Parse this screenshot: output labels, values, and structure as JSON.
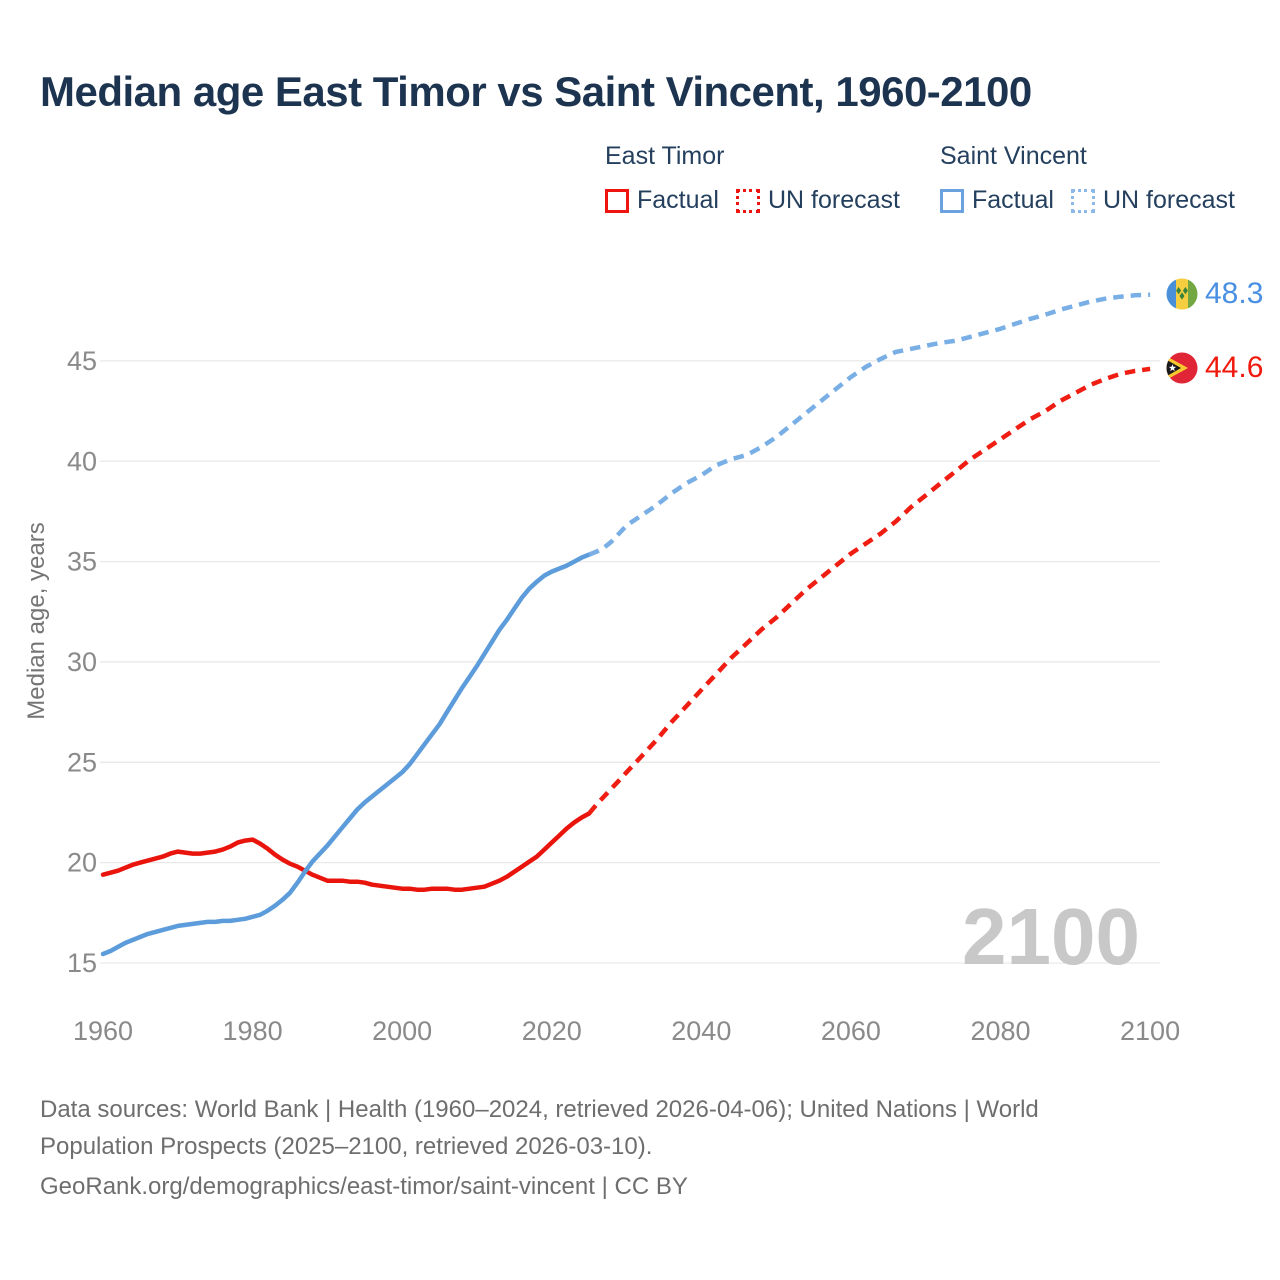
{
  "title": "Median age East Timor vs Saint Vincent, 1960-2100",
  "legend": {
    "groups": [
      {
        "name": "East Timor",
        "items": [
          {
            "label": "Factual",
            "style": "solid",
            "color": "#ee1511"
          },
          {
            "label": "UN forecast",
            "style": "dotted",
            "color": "#ee1511"
          }
        ]
      },
      {
        "name": "Saint Vincent",
        "items": [
          {
            "label": "Factual",
            "style": "solid",
            "color": "#6aa2df"
          },
          {
            "label": "UN forecast",
            "style": "dotted",
            "color": "#8cb9ea"
          }
        ]
      }
    ]
  },
  "chart_data": {
    "type": "line",
    "title": "Median age East Timor vs Saint Vincent, 1960-2100",
    "xlabel": "",
    "ylabel": "Median age, years",
    "xlim": [
      1958,
      2102
    ],
    "ylim": [
      13.5,
      50
    ],
    "x_ticks": [
      1960,
      1980,
      2000,
      2020,
      2040,
      2060,
      2080,
      2100
    ],
    "y_ticks": [
      15,
      20,
      25,
      30,
      35,
      40,
      45
    ],
    "grid": "horizontal",
    "legend_position": "top-right",
    "watermark": "2100",
    "series": [
      {
        "name": "East Timor Factual",
        "style": "solid",
        "color": "#e9150d",
        "points": [
          [
            1960,
            19.4
          ],
          [
            1961,
            19.5
          ],
          [
            1962,
            19.6
          ],
          [
            1963,
            19.75
          ],
          [
            1964,
            19.9
          ],
          [
            1965,
            20.0
          ],
          [
            1966,
            20.1
          ],
          [
            1967,
            20.2
          ],
          [
            1968,
            20.3
          ],
          [
            1969,
            20.45
          ],
          [
            1970,
            20.55
          ],
          [
            1971,
            20.5
          ],
          [
            1972,
            20.45
          ],
          [
            1973,
            20.45
          ],
          [
            1974,
            20.5
          ],
          [
            1975,
            20.55
          ],
          [
            1976,
            20.65
          ],
          [
            1977,
            20.8
          ],
          [
            1978,
            21.0
          ],
          [
            1979,
            21.1
          ],
          [
            1980,
            21.15
          ],
          [
            1981,
            20.95
          ],
          [
            1982,
            20.7
          ],
          [
            1983,
            20.4
          ],
          [
            1984,
            20.15
          ],
          [
            1985,
            19.95
          ],
          [
            1986,
            19.8
          ],
          [
            1987,
            19.6
          ],
          [
            1988,
            19.4
          ],
          [
            1989,
            19.25
          ],
          [
            1990,
            19.1
          ],
          [
            1991,
            19.1
          ],
          [
            1992,
            19.1
          ],
          [
            1993,
            19.05
          ],
          [
            1994,
            19.05
          ],
          [
            1995,
            19.0
          ],
          [
            1996,
            18.9
          ],
          [
            1997,
            18.85
          ],
          [
            1998,
            18.8
          ],
          [
            1999,
            18.75
          ],
          [
            2000,
            18.7
          ],
          [
            2001,
            18.7
          ],
          [
            2002,
            18.65
          ],
          [
            2003,
            18.65
          ],
          [
            2004,
            18.7
          ],
          [
            2005,
            18.7
          ],
          [
            2006,
            18.7
          ],
          [
            2007,
            18.65
          ],
          [
            2008,
            18.65
          ],
          [
            2009,
            18.7
          ],
          [
            2010,
            18.75
          ],
          [
            2011,
            18.8
          ],
          [
            2012,
            18.95
          ],
          [
            2013,
            19.1
          ],
          [
            2014,
            19.3
          ],
          [
            2015,
            19.55
          ],
          [
            2016,
            19.8
          ],
          [
            2017,
            20.05
          ],
          [
            2018,
            20.3
          ],
          [
            2019,
            20.65
          ],
          [
            2020,
            21.0
          ],
          [
            2021,
            21.35
          ],
          [
            2022,
            21.7
          ],
          [
            2023,
            22.0
          ],
          [
            2024,
            22.25
          ],
          [
            2025,
            22.45
          ]
        ]
      },
      {
        "name": "East Timor UN forecast",
        "style": "dashed",
        "color": "#ef1d12",
        "points": [
          [
            2025,
            22.45
          ],
          [
            2026,
            22.9
          ],
          [
            2027,
            23.3
          ],
          [
            2028,
            23.7
          ],
          [
            2029,
            24.1
          ],
          [
            2030,
            24.5
          ],
          [
            2032,
            25.3
          ],
          [
            2034,
            26.1
          ],
          [
            2036,
            27.0
          ],
          [
            2038,
            27.8
          ],
          [
            2040,
            28.6
          ],
          [
            2042,
            29.4
          ],
          [
            2044,
            30.2
          ],
          [
            2046,
            30.9
          ],
          [
            2048,
            31.6
          ],
          [
            2050,
            32.2
          ],
          [
            2052,
            32.9
          ],
          [
            2054,
            33.6
          ],
          [
            2056,
            34.2
          ],
          [
            2058,
            34.8
          ],
          [
            2060,
            35.4
          ],
          [
            2062,
            35.9
          ],
          [
            2064,
            36.4
          ],
          [
            2066,
            37.0
          ],
          [
            2068,
            37.7
          ],
          [
            2070,
            38.3
          ],
          [
            2072,
            38.9
          ],
          [
            2074,
            39.5
          ],
          [
            2076,
            40.1
          ],
          [
            2078,
            40.6
          ],
          [
            2080,
            41.1
          ],
          [
            2082,
            41.6
          ],
          [
            2084,
            42.1
          ],
          [
            2086,
            42.5
          ],
          [
            2088,
            43.0
          ],
          [
            2090,
            43.4
          ],
          [
            2092,
            43.8
          ],
          [
            2094,
            44.1
          ],
          [
            2096,
            44.35
          ],
          [
            2098,
            44.5
          ],
          [
            2100,
            44.6
          ]
        ]
      },
      {
        "name": "Saint Vincent Factual",
        "style": "solid",
        "color": "#5d9cdb",
        "points": [
          [
            1960,
            15.45
          ],
          [
            1961,
            15.6
          ],
          [
            1962,
            15.8
          ],
          [
            1963,
            16.0
          ],
          [
            1964,
            16.15
          ],
          [
            1965,
            16.3
          ],
          [
            1966,
            16.45
          ],
          [
            1967,
            16.55
          ],
          [
            1968,
            16.65
          ],
          [
            1969,
            16.75
          ],
          [
            1970,
            16.85
          ],
          [
            1971,
            16.9
          ],
          [
            1972,
            16.95
          ],
          [
            1973,
            17.0
          ],
          [
            1974,
            17.05
          ],
          [
            1975,
            17.05
          ],
          [
            1976,
            17.1
          ],
          [
            1977,
            17.1
          ],
          [
            1978,
            17.15
          ],
          [
            1979,
            17.2
          ],
          [
            1980,
            17.3
          ],
          [
            1981,
            17.4
          ],
          [
            1982,
            17.6
          ],
          [
            1983,
            17.85
          ],
          [
            1984,
            18.15
          ],
          [
            1985,
            18.5
          ],
          [
            1986,
            19.0
          ],
          [
            1987,
            19.55
          ],
          [
            1988,
            20.05
          ],
          [
            1989,
            20.45
          ],
          [
            1990,
            20.85
          ],
          [
            1991,
            21.3
          ],
          [
            1992,
            21.75
          ],
          [
            1993,
            22.2
          ],
          [
            1994,
            22.65
          ],
          [
            1995,
            23.0
          ],
          [
            1996,
            23.3
          ],
          [
            1997,
            23.6
          ],
          [
            1998,
            23.9
          ],
          [
            1999,
            24.2
          ],
          [
            2000,
            24.5
          ],
          [
            2001,
            24.9
          ],
          [
            2002,
            25.4
          ],
          [
            2003,
            25.9
          ],
          [
            2004,
            26.4
          ],
          [
            2005,
            26.9
          ],
          [
            2006,
            27.5
          ],
          [
            2007,
            28.1
          ],
          [
            2008,
            28.7
          ],
          [
            2009,
            29.25
          ],
          [
            2010,
            29.8
          ],
          [
            2011,
            30.4
          ],
          [
            2012,
            31.0
          ],
          [
            2013,
            31.6
          ],
          [
            2014,
            32.1
          ],
          [
            2015,
            32.65
          ],
          [
            2016,
            33.2
          ],
          [
            2017,
            33.65
          ],
          [
            2018,
            34.0
          ],
          [
            2019,
            34.3
          ],
          [
            2020,
            34.5
          ],
          [
            2021,
            34.65
          ],
          [
            2022,
            34.8
          ],
          [
            2023,
            35.0
          ],
          [
            2024,
            35.2
          ],
          [
            2025,
            35.35
          ]
        ]
      },
      {
        "name": "Saint Vincent UN forecast",
        "style": "dashed",
        "color": "#79afe5",
        "points": [
          [
            2025,
            35.35
          ],
          [
            2026,
            35.5
          ],
          [
            2027,
            35.7
          ],
          [
            2028,
            36.0
          ],
          [
            2029,
            36.4
          ],
          [
            2030,
            36.8
          ],
          [
            2032,
            37.3
          ],
          [
            2034,
            37.8
          ],
          [
            2036,
            38.4
          ],
          [
            2038,
            38.9
          ],
          [
            2040,
            39.3
          ],
          [
            2042,
            39.8
          ],
          [
            2044,
            40.1
          ],
          [
            2046,
            40.3
          ],
          [
            2048,
            40.7
          ],
          [
            2050,
            41.2
          ],
          [
            2052,
            41.8
          ],
          [
            2054,
            42.4
          ],
          [
            2056,
            43.0
          ],
          [
            2058,
            43.6
          ],
          [
            2060,
            44.2
          ],
          [
            2062,
            44.7
          ],
          [
            2064,
            45.1
          ],
          [
            2066,
            45.45
          ],
          [
            2068,
            45.6
          ],
          [
            2070,
            45.75
          ],
          [
            2072,
            45.9
          ],
          [
            2074,
            46.0
          ],
          [
            2076,
            46.2
          ],
          [
            2078,
            46.4
          ],
          [
            2080,
            46.6
          ],
          [
            2082,
            46.85
          ],
          [
            2084,
            47.1
          ],
          [
            2086,
            47.3
          ],
          [
            2088,
            47.55
          ],
          [
            2090,
            47.75
          ],
          [
            2092,
            47.95
          ],
          [
            2094,
            48.1
          ],
          [
            2096,
            48.2
          ],
          [
            2098,
            48.27
          ],
          [
            2100,
            48.3
          ]
        ]
      }
    ],
    "end_labels": [
      {
        "series": "Saint Vincent",
        "label": "48.3",
        "value": 48.3,
        "color": "#4a90e2",
        "flag": "saint-vincent"
      },
      {
        "series": "East Timor",
        "label": "44.6",
        "value": 44.6,
        "color": "#f0190d",
        "flag": "east-timor"
      }
    ]
  },
  "footer": {
    "lines": [
      "Data sources: World Bank | Health (1960–2024, retrieved 2026-04-06); United Nations | World",
      "Population Prospects (2025–2100, retrieved 2026-03-10).",
      "GeoRank.org/demographics/east-timor/saint-vincent | CC BY"
    ]
  }
}
